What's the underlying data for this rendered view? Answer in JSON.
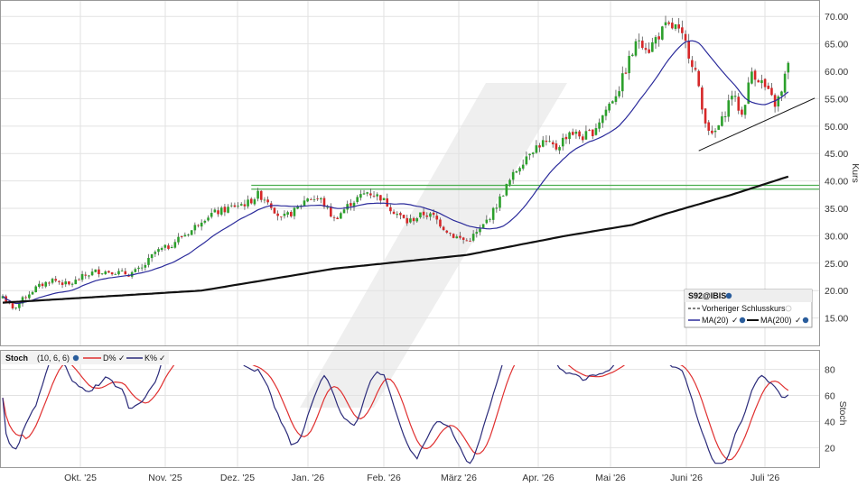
{
  "colors": {
    "up": "#2ca02c",
    "down": "#d62728",
    "ma20": "#2b2b9b",
    "ma200": "#111111",
    "support": "#4caf50",
    "stoch_d": "#e03030",
    "stoch_k": "#2b2b7a"
  },
  "chart_data": [
    {
      "type": "candlestick",
      "ylabel": "Kurs",
      "ylim": [
        10,
        73
      ],
      "yticks": [
        15,
        20,
        25,
        30,
        35,
        40,
        45,
        50,
        55,
        60,
        65,
        70
      ],
      "ytick_labels": [
        "15.00",
        "20.00",
        "25.00",
        "30.00",
        "35.00",
        "40.00",
        "45.00",
        "50.00",
        "55.00",
        "60.00",
        "65.00",
        "70.00"
      ],
      "xticks": [
        "Okt. '25",
        "Nov. '25",
        "Dez. '25",
        "Jan. '26",
        "Feb. '26",
        "März '26",
        "Apr. '26",
        "Mai '26",
        "Juni '26",
        "Juli '26"
      ],
      "grid": true,
      "legend": {
        "placement": "bottom-right",
        "title": "S92@IBIS",
        "prev_close_label": "Vorheriger Schlusskurs",
        "ma20_label": "MA(20)",
        "ma200_label": "MA(200)"
      },
      "price_anchors": [
        [
          0,
          19
        ],
        [
          3,
          16.5
        ],
        [
          7,
          19
        ],
        [
          10,
          20.5
        ],
        [
          15,
          22
        ],
        [
          20,
          21
        ],
        [
          24,
          22.5
        ],
        [
          28,
          23.5
        ],
        [
          33,
          23.5
        ],
        [
          38,
          23
        ],
        [
          42,
          24
        ],
        [
          46,
          27
        ],
        [
          50,
          28
        ],
        [
          53,
          29.5
        ],
        [
          57,
          31
        ],
        [
          60,
          33
        ],
        [
          63,
          34
        ],
        [
          66,
          34.5
        ],
        [
          70,
          35.5
        ],
        [
          74,
          36
        ],
        [
          77,
          37.5
        ],
        [
          80,
          36.5
        ],
        [
          84,
          33
        ],
        [
          88,
          34.5
        ],
        [
          92,
          37
        ],
        [
          96,
          36.5
        ],
        [
          100,
          33
        ],
        [
          105,
          36
        ],
        [
          110,
          38
        ],
        [
          114,
          37
        ],
        [
          118,
          34.5
        ],
        [
          122,
          32.5
        ],
        [
          127,
          34
        ],
        [
          130,
          33.5
        ],
        [
          133,
          31.5
        ],
        [
          136,
          30
        ],
        [
          140,
          29
        ],
        [
          144,
          31
        ],
        [
          148,
          34.5
        ],
        [
          152,
          39
        ],
        [
          155,
          42
        ],
        [
          159,
          45.5
        ],
        [
          163,
          47
        ],
        [
          167,
          46
        ],
        [
          171,
          49
        ],
        [
          175,
          48
        ],
        [
          178,
          49
        ],
        [
          182,
          53
        ],
        [
          186,
          57
        ],
        [
          189,
          62
        ],
        [
          192,
          66
        ],
        [
          195,
          64
        ],
        [
          197,
          66
        ],
        [
          200,
          68
        ],
        [
          203,
          68
        ],
        [
          206,
          65
        ],
        [
          209,
          60
        ],
        [
          211,
          53
        ],
        [
          214,
          48
        ],
        [
          217,
          51
        ],
        [
          220,
          56
        ],
        [
          223,
          52
        ],
        [
          226,
          60
        ],
        [
          229,
          58
        ],
        [
          231,
          56
        ],
        [
          233,
          54
        ],
        [
          235,
          56
        ],
        [
          237,
          62
        ]
      ],
      "candles_count": 238,
      "support_band": {
        "from_index": 75,
        "values": [
          38.5,
          39.2
        ]
      },
      "trendline": {
        "from": [
          210,
          45.5
        ],
        "to": [
          245,
          55.1
        ]
      },
      "ma200_anchors": [
        [
          0,
          17.8
        ],
        [
          60,
          20
        ],
        [
          100,
          24
        ],
        [
          140,
          26.5
        ],
        [
          170,
          30
        ],
        [
          190,
          32
        ],
        [
          200,
          34
        ],
        [
          220,
          37.5
        ],
        [
          237,
          40.8
        ]
      ]
    },
    {
      "type": "line",
      "title": "Stoch",
      "params": "(10, 6, 6)",
      "ylabel": "Stoch",
      "ylim": [
        5,
        95
      ],
      "yticks": [
        20,
        40,
        60,
        80
      ],
      "series": [
        {
          "name": "D%",
          "period": 7
        },
        {
          "name": "K%",
          "period": 10
        }
      ]
    }
  ]
}
